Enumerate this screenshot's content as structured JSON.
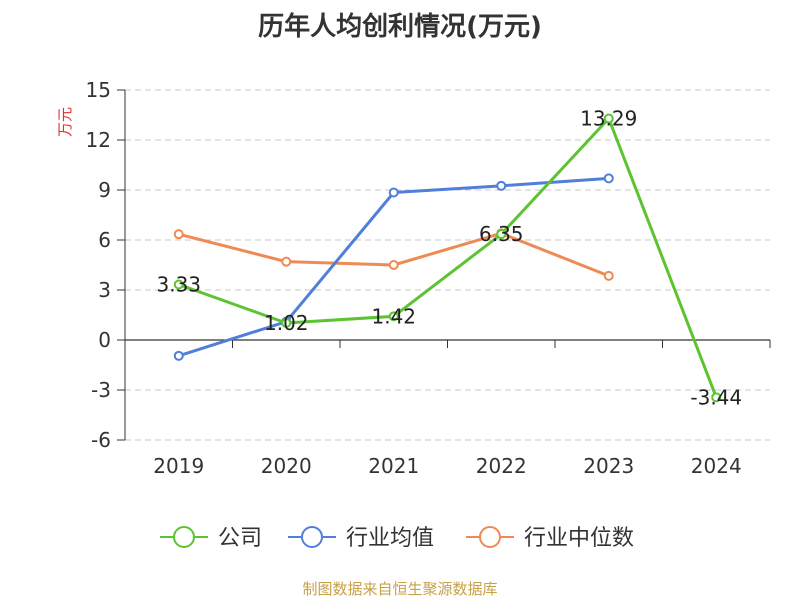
{
  "footer": {
    "source": "制图数据来自恒生聚源数据库"
  },
  "colors": {
    "company": "#5cc430",
    "industry_avg": "#4f7fd9",
    "industry_median": "#f08a55",
    "ylabel": "#e0312b"
  },
  "chart_data": {
    "type": "line",
    "title": "历年人均创利情况(万元)",
    "xlabel": "",
    "ylabel": "万元",
    "categories": [
      "2019",
      "2020",
      "2021",
      "2022",
      "2023",
      "2024"
    ],
    "ylim": [
      -6,
      15
    ],
    "yticks": [
      "15",
      "12",
      "9",
      "6",
      "3",
      "0",
      "-3",
      "-6"
    ],
    "grid": true,
    "legend_position": "bottom",
    "series": [
      {
        "name": "公司",
        "color": "#5cc430",
        "values": [
          3.33,
          1.02,
          1.42,
          6.35,
          13.29,
          -3.44
        ],
        "labels": [
          "3.33",
          "1.02",
          "1.42",
          "6.35",
          "13.29",
          "-3.44"
        ]
      },
      {
        "name": "行业均值",
        "color": "#4f7fd9",
        "values": [
          -0.95,
          1.1,
          8.85,
          9.25,
          9.7,
          null
        ]
      },
      {
        "name": "行业中位数",
        "color": "#f08a55",
        "values": [
          6.35,
          4.7,
          4.5,
          6.4,
          3.85,
          null
        ]
      }
    ]
  }
}
